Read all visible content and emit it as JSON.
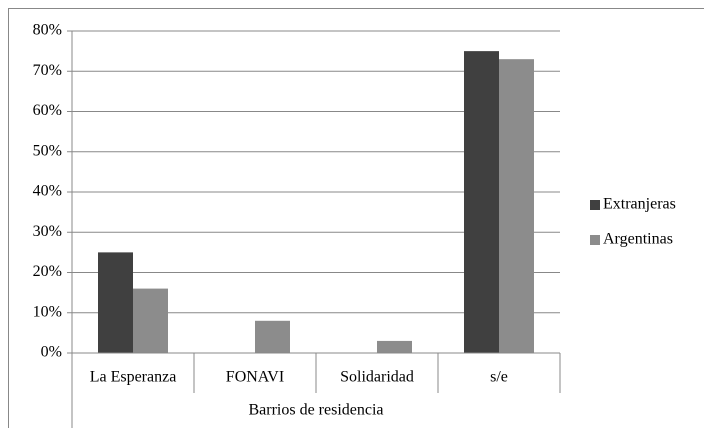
{
  "chart_data": {
    "type": "bar",
    "categories": [
      "La Esperanza",
      "FONAVI",
      "Solidaridad",
      "s/e"
    ],
    "x_label": "Barrios de residencia",
    "series": [
      {
        "name": "Extranjeras",
        "color": "#404040",
        "values": [
          25,
          0,
          0,
          75
        ]
      },
      {
        "name": "Argentinas",
        "color": "#8c8c8c",
        "values": [
          16,
          8,
          3,
          73
        ]
      }
    ],
    "ylim": [
      0,
      80
    ],
    "yticks": [
      {
        "value": 0,
        "label": "0%"
      },
      {
        "value": 10,
        "label": "10%"
      },
      {
        "value": 20,
        "label": "20%"
      },
      {
        "value": 30,
        "label": "30%"
      },
      {
        "value": 40,
        "label": "40%"
      },
      {
        "value": 50,
        "label": "50%"
      },
      {
        "value": 60,
        "label": "60%"
      },
      {
        "value": 70,
        "label": "70%"
      },
      {
        "value": 80,
        "label": "80%"
      }
    ],
    "grid": true,
    "legend": "right"
  }
}
